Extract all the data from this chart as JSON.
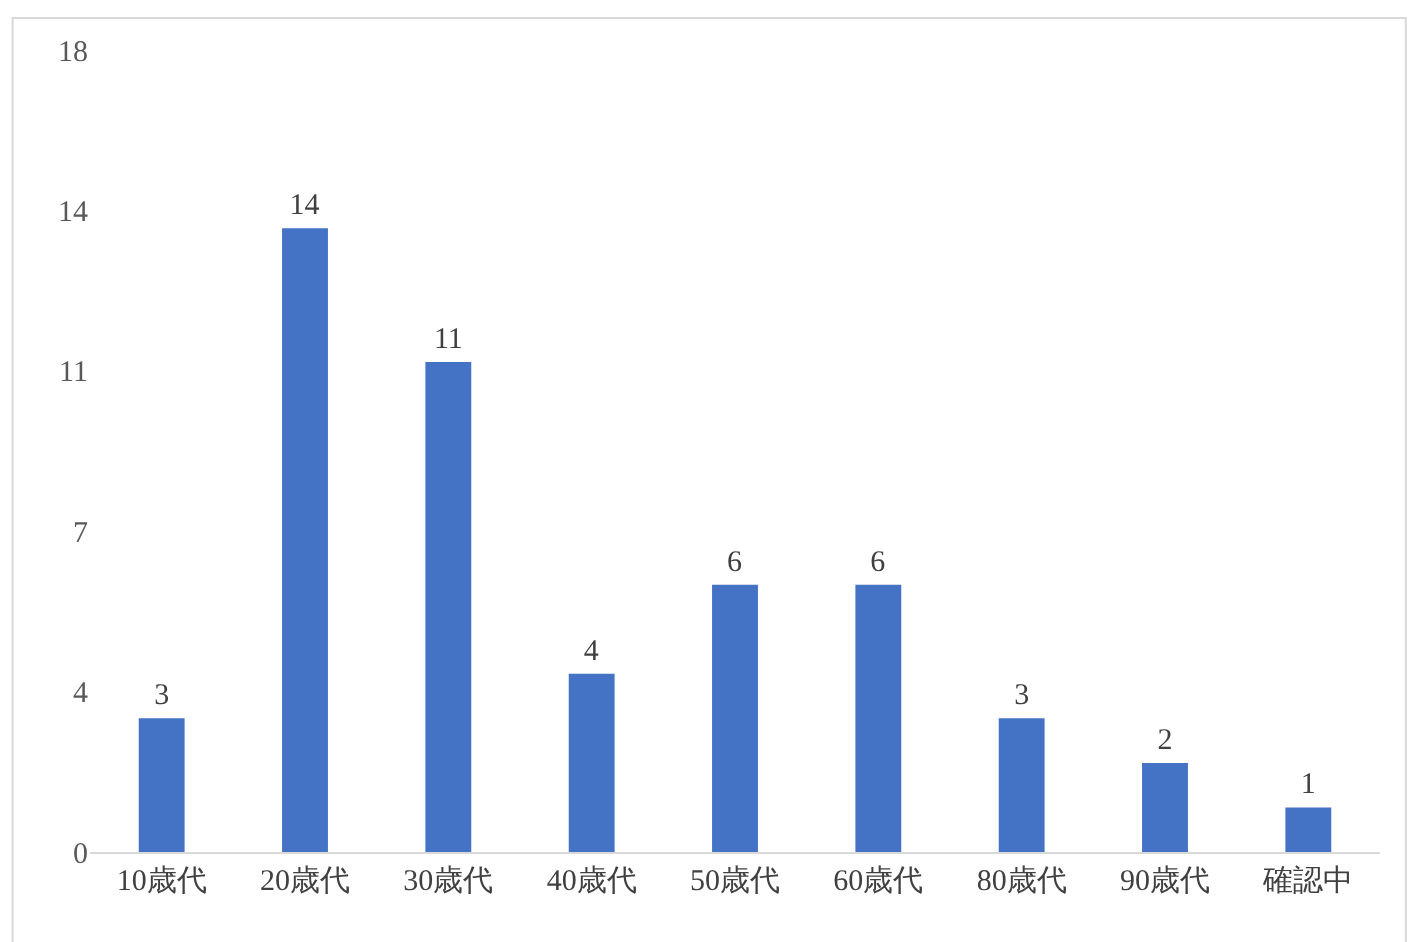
{
  "chart_data": {
    "type": "bar",
    "categories": [
      "10歳代",
      "20歳代",
      "30歳代",
      "40歳代",
      "50歳代",
      "60歳代",
      "80歳代",
      "90歳代",
      "確認中"
    ],
    "values": [
      3,
      14,
      11,
      4,
      6,
      6,
      3,
      2,
      1
    ],
    "color": "#4472c4",
    "ylim": [
      0,
      18
    ],
    "yticks": [
      0,
      {
        "value": 3.6,
        "label": "4"
      },
      {
        "value": 7.2,
        "label": "7"
      },
      {
        "value": 10.8,
        "label": "11"
      },
      {
        "value": 14.4,
        "label": "14"
      },
      18
    ],
    "data_labels": true
  }
}
